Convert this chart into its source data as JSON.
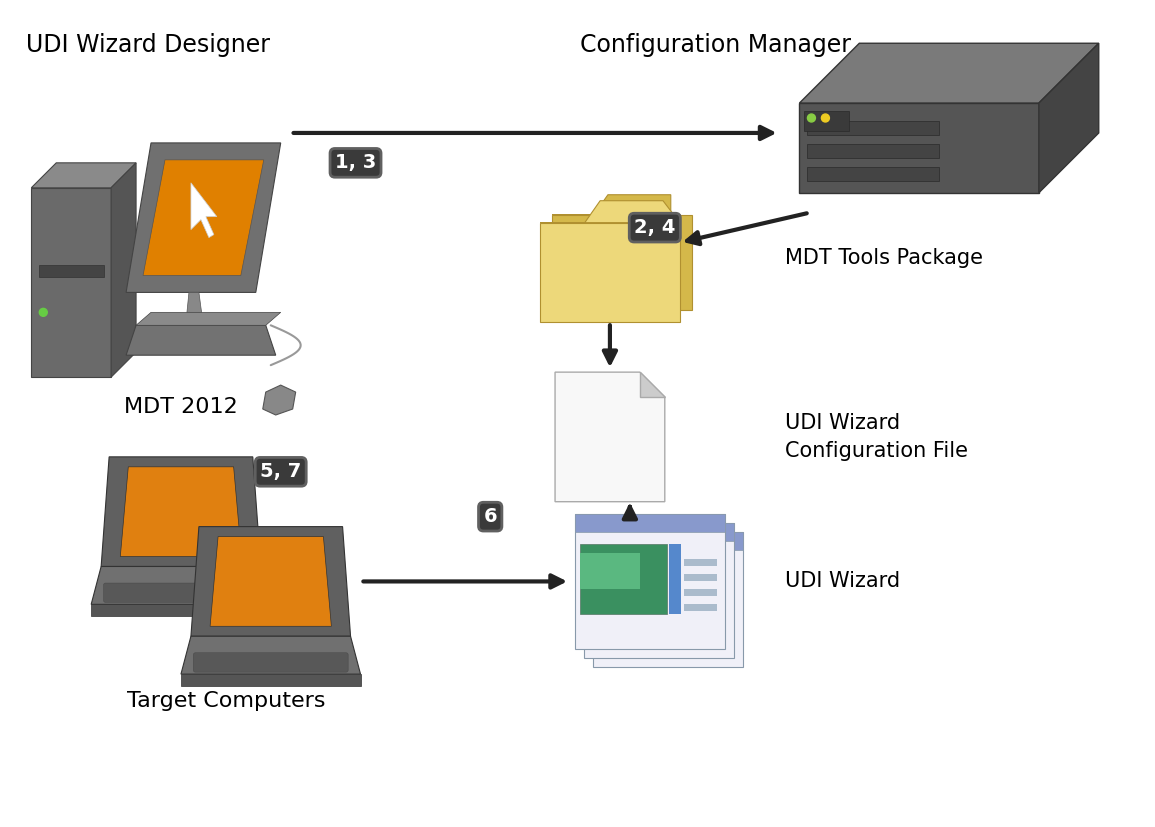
{
  "background_color": "#ffffff",
  "labels": {
    "udi_wizard_designer": "UDI Wizard Designer",
    "config_manager": "Configuration Manager",
    "mdt_2012": "MDT 2012",
    "mdt_tools_package": "MDT Tools Package",
    "udi_wizard_config_file": "UDI Wizard\nConfiguration File",
    "udi_wizard": "UDI Wizard",
    "target_computers": "Target Computers",
    "badge_13": "1, 3",
    "badge_24": "2, 4",
    "badge_57": "5, 7",
    "badge_6": "6"
  },
  "font_size_label": 15,
  "font_size_badge": 14
}
